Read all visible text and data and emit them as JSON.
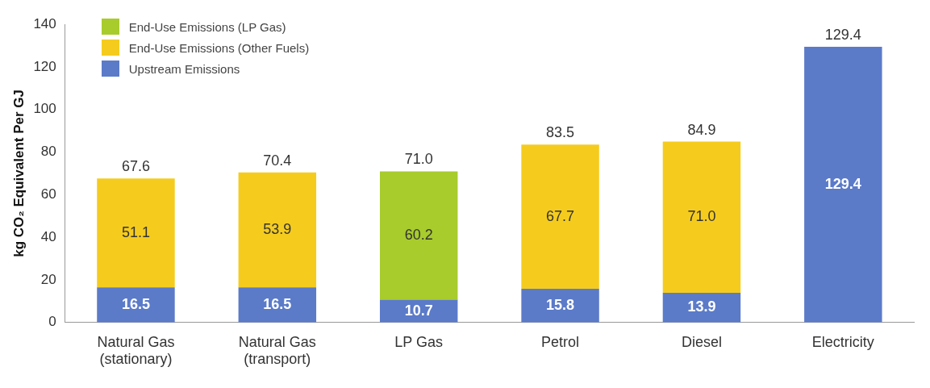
{
  "chart_data": {
    "type": "bar",
    "stacked": true,
    "ylabel": "kg CO₂ Equivalent Per GJ",
    "categories": [
      "Natural Gas\n(stationary)",
      "Natural Gas\n(transport)",
      "LP Gas",
      "Petrol",
      "Diesel",
      "Electricity"
    ],
    "series": [
      {
        "name": "Upstream Emissions",
        "color": "#5b7bc9",
        "values": [
          16.5,
          16.5,
          10.7,
          15.8,
          13.9,
          129.4
        ],
        "value_labels": [
          "16.5",
          "16.5",
          "10.7",
          "15.8",
          "13.9",
          "129.4"
        ]
      },
      {
        "name": "End-Use Emissions (Other Fuels)",
        "color": "#f5cc1e",
        "values": [
          51.1,
          53.9,
          null,
          67.7,
          71.0,
          null
        ],
        "value_labels": [
          "51.1",
          "53.9",
          null,
          "67.7",
          "71.0",
          null
        ]
      },
      {
        "name": "End-Use Emissions (LP Gas)",
        "color": "#a8cc2c",
        "values": [
          null,
          null,
          60.2,
          null,
          null,
          null
        ],
        "value_labels": [
          null,
          null,
          "60.2",
          null,
          null,
          null
        ]
      }
    ],
    "totals": [
      "67.6",
      "70.4",
      "71.0",
      "83.5",
      "84.9",
      "129.4"
    ],
    "ylim": [
      0,
      140
    ],
    "yticks": [
      0,
      20,
      40,
      60,
      80,
      100,
      120,
      140
    ],
    "grid": false,
    "legend": "top left"
  }
}
